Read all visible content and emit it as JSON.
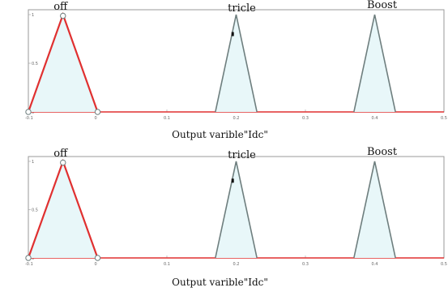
{
  "colors": {
    "active": "#e03030",
    "inactive": "#6e7e7e",
    "fill": "#e8f7f9",
    "frame": "#9a9a9a",
    "marker": "#111111"
  },
  "chart_data": [
    {
      "type": "line",
      "subtype": "membership-functions",
      "xlabel": "Output varible\"Idc\"",
      "xlim": [
        -0.1,
        0.5
      ],
      "ylim": [
        0,
        1.05
      ],
      "xticks": [
        "-0.1",
        "0",
        "0.1",
        "0.2",
        "0.3",
        "0.4",
        "0.5"
      ],
      "yticks": [
        "0",
        "0.5",
        "1"
      ],
      "series": [
        {
          "name": "off",
          "points": [
            [
              -0.1,
              0
            ],
            [
              -0.05,
              1
            ],
            [
              0,
              0
            ]
          ],
          "active": true
        },
        {
          "name": "tricle",
          "points": [
            [
              0.17,
              0
            ],
            [
              0.2,
              1
            ],
            [
              0.23,
              0
            ]
          ],
          "active": false
        },
        {
          "name": "Boost",
          "points": [
            [
              0.37,
              0
            ],
            [
              0.4,
              1
            ],
            [
              0.43,
              0
            ]
          ],
          "active": false
        }
      ],
      "baseline_active": true,
      "marker": [
        0.195,
        0.8
      ]
    },
    {
      "type": "line",
      "subtype": "membership-functions",
      "xlabel": "Output varible\"Idc\"",
      "xlim": [
        -0.1,
        0.5
      ],
      "ylim": [
        0,
        1.05
      ],
      "xticks": [
        "-0.1",
        "0",
        "0.1",
        "0.2",
        "0.3",
        "0.4",
        "0.5"
      ],
      "yticks": [
        "0",
        "0.5",
        "1"
      ],
      "series": [
        {
          "name": "off",
          "points": [
            [
              -0.1,
              0
            ],
            [
              -0.05,
              1
            ],
            [
              0,
              0
            ]
          ],
          "active": true
        },
        {
          "name": "tricle",
          "points": [
            [
              0.17,
              0
            ],
            [
              0.2,
              1
            ],
            [
              0.23,
              0
            ]
          ],
          "active": false
        },
        {
          "name": "Boost",
          "points": [
            [
              0.37,
              0
            ],
            [
              0.4,
              1
            ],
            [
              0.43,
              0
            ]
          ],
          "active": false
        }
      ],
      "baseline_active": true,
      "marker": [
        0.195,
        0.8
      ]
    }
  ]
}
